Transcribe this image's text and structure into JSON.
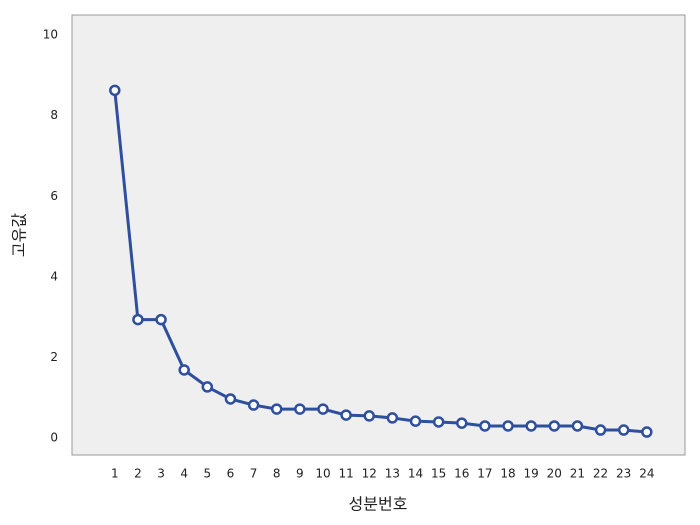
{
  "chart_data": {
    "type": "line",
    "x_label": "성분번호",
    "y_label": "고유값",
    "x": [
      1,
      2,
      3,
      4,
      5,
      6,
      7,
      8,
      9,
      10,
      11,
      12,
      13,
      14,
      15,
      16,
      17,
      18,
      19,
      20,
      21,
      22,
      23,
      24
    ],
    "series": [
      {
        "name": null,
        "color": "#2e4f9e",
        "values": [
          8.63,
          2.94,
          2.94,
          1.69,
          1.27,
          0.97,
          0.82,
          0.72,
          0.72,
          0.72,
          0.57,
          0.55,
          0.5,
          0.42,
          0.4,
          0.37,
          0.3,
          0.3,
          0.3,
          0.3,
          0.3,
          0.2,
          0.2,
          0.15
        ]
      }
    ],
    "xlim": [
      -0.85,
      25.65
    ],
    "xticks": [
      1,
      2,
      3,
      4,
      5,
      6,
      7,
      8,
      9,
      10,
      11,
      12,
      13,
      14,
      15,
      16,
      17,
      18,
      19,
      20,
      21,
      22,
      23,
      24
    ],
    "ylim": [
      -0.42,
      10.5
    ],
    "yticks": [
      0,
      2,
      4,
      6,
      8,
      10
    ],
    "grid": false
  }
}
